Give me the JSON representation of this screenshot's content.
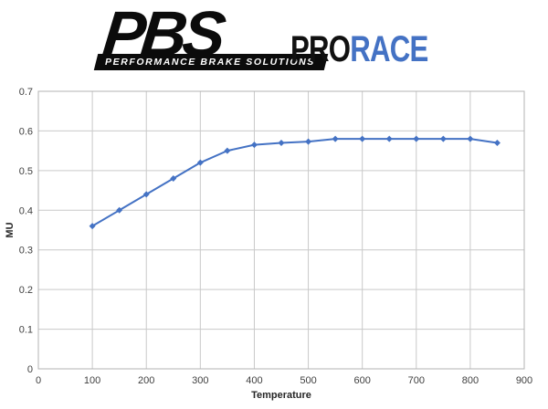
{
  "logo": {
    "pbs": "PBS",
    "tagline": "PERFORMANCE BRAKE SOLUTIONS",
    "brand_pro": "PRO",
    "brand_race": "RACE",
    "brand_pro_color": "#111111",
    "brand_race_color": "#4472c4"
  },
  "chart_data": {
    "type": "line",
    "title": "",
    "xlabel": "Temperature",
    "ylabel": "MU",
    "x": [
      100,
      150,
      200,
      250,
      300,
      350,
      400,
      450,
      500,
      550,
      600,
      650,
      700,
      750,
      800,
      850
    ],
    "series": [
      {
        "name": "MU",
        "values": [
          0.36,
          0.4,
          0.44,
          0.48,
          0.52,
          0.55,
          0.565,
          0.57,
          0.573,
          0.58,
          0.58,
          0.58,
          0.58,
          0.58,
          0.58,
          0.57
        ]
      }
    ],
    "xlim": [
      0,
      900
    ],
    "ylim": [
      0,
      0.7
    ],
    "xtick_step": 100,
    "ytick_step": 0.1,
    "grid": true,
    "legend": false,
    "marker": "diamond",
    "line_color": "#4472c4",
    "grid_color": "#c9c9c9",
    "border_color": "#b3b3b3",
    "tick_color": "#404040",
    "axis_label_color": "#262626"
  }
}
